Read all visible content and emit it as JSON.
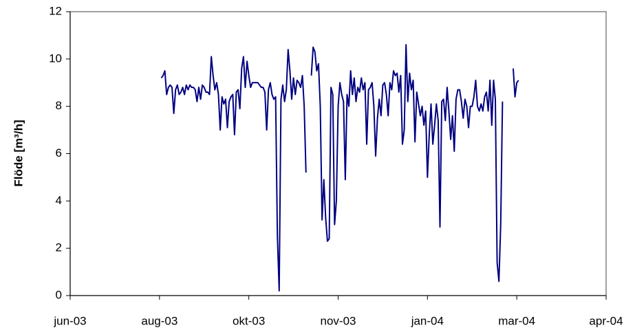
{
  "chart_data": {
    "type": "line",
    "ylabel": "Flöde [m³/h]",
    "xlim": [
      0,
      300
    ],
    "xticks": [
      {
        "value": 0,
        "label": "jun-03"
      },
      {
        "value": 50,
        "label": "aug-03"
      },
      {
        "value": 100,
        "label": "okt-03"
      },
      {
        "value": 150,
        "label": "nov-03"
      },
      {
        "value": 200,
        "label": "jan-04"
      },
      {
        "value": 250,
        "label": "mar-04"
      },
      {
        "value": 300,
        "label": "apr-04"
      }
    ],
    "ylim": [
      0,
      12
    ],
    "yticks": [
      0,
      2,
      4,
      6,
      8,
      10,
      12
    ],
    "grid": false,
    "x": [
      51,
      52,
      53,
      54,
      55,
      56,
      57,
      58,
      59,
      60,
      61,
      62,
      63,
      64,
      65,
      66,
      67,
      68,
      69,
      70,
      71,
      72,
      73,
      74,
      75,
      76,
      77,
      78,
      79,
      80,
      81,
      82,
      83,
      84,
      85,
      86,
      87,
      88,
      89,
      90,
      91,
      92,
      93,
      94,
      95,
      96,
      97,
      98,
      99,
      100,
      101,
      102,
      103,
      104,
      105,
      106,
      107,
      108,
      109,
      110,
      111,
      112,
      113,
      114,
      115,
      116,
      117,
      118,
      119,
      120,
      121,
      122,
      123,
      124,
      125,
      126,
      127,
      128,
      129,
      130,
      131,
      132,
      133,
      134,
      135,
      136,
      137,
      138,
      139,
      140,
      141,
      142,
      143,
      144,
      145,
      146,
      147,
      148,
      149,
      150,
      151,
      152,
      153,
      154,
      155,
      156,
      157,
      158,
      159,
      160,
      161,
      162,
      163,
      164,
      165,
      166,
      167,
      168,
      169,
      170,
      171,
      172,
      173,
      174,
      175,
      176,
      177,
      178,
      179,
      180,
      181,
      182,
      183,
      184,
      185,
      186,
      187,
      188,
      189,
      190,
      191,
      192,
      193,
      194,
      195,
      196,
      197,
      198,
      199,
      200,
      201,
      202,
      203,
      204,
      205,
      206,
      207,
      208,
      209,
      210,
      211,
      212,
      213,
      214,
      215,
      216,
      217,
      218,
      219,
      220,
      221,
      222,
      223,
      224,
      225,
      226,
      227,
      228,
      229,
      230,
      231,
      232,
      233,
      234,
      235,
      236,
      237,
      238,
      239,
      240,
      241,
      242,
      243,
      244,
      245,
      246,
      247,
      248,
      249,
      250,
      251
    ],
    "series": [
      {
        "color": "#000080",
        "values": [
          9.2,
          9.3,
          9.5,
          8.5,
          8.8,
          8.9,
          8.8,
          7.7,
          8.7,
          8.9,
          8.5,
          8.6,
          8.8,
          8.5,
          8.9,
          8.7,
          8.9,
          8.8,
          8.8,
          8.7,
          8.2,
          8.8,
          8.3,
          8.9,
          8.8,
          8.6,
          8.6,
          8.5,
          10.1,
          9.3,
          8.7,
          9.0,
          8.5,
          7.0,
          8.4,
          8.1,
          8.3,
          7.1,
          8.2,
          8.4,
          8.5,
          6.8,
          8.6,
          8.7,
          7.9,
          9.6,
          10.1,
          8.8,
          9.9,
          9.3,
          8.8,
          9.0,
          9.0,
          9.0,
          9.0,
          8.9,
          8.8,
          8.8,
          8.6,
          7.0,
          8.7,
          9.0,
          8.5,
          8.3,
          8.4,
          2.5,
          0.2,
          8.3,
          8.9,
          8.2,
          8.7,
          10.4,
          9.5,
          8.3,
          9.2,
          8.5,
          9.1,
          9.0,
          8.8,
          9.3,
          8.0,
          5.2,
          null,
          null,
          9.3,
          10.5,
          10.3,
          9.5,
          9.8,
          8.0,
          3.2,
          4.9,
          3.3,
          2.3,
          2.4,
          8.8,
          8.5,
          3.0,
          4.0,
          8.0,
          9.0,
          8.5,
          8.2,
          4.9,
          8.5,
          8.0,
          9.5,
          8.5,
          9.2,
          8.2,
          8.8,
          8.6,
          9.2,
          8.7,
          9.0,
          6.4,
          8.7,
          8.8,
          9.0,
          8.0,
          5.9,
          7.5,
          8.3,
          7.6,
          8.9,
          9.0,
          8.5,
          7.6,
          9.0,
          8.7,
          9.5,
          9.3,
          9.4,
          8.6,
          9.3,
          6.4,
          7.0,
          10.6,
          8.2,
          9.4,
          8.7,
          9.1,
          6.5,
          8.6,
          8.1,
          7.6,
          8.0,
          7.2,
          7.8,
          5.0,
          6.8,
          8.1,
          6.4,
          7.2,
          8.1,
          7.4,
          2.9,
          8.2,
          8.3,
          7.4,
          8.8,
          7.8,
          6.6,
          7.6,
          6.1,
          8.3,
          8.7,
          8.7,
          8.2,
          7.5,
          8.3,
          8.0,
          7.1,
          8.0,
          8.0,
          8.4,
          9.1,
          8.0,
          7.8,
          8.1,
          7.8,
          8.4,
          8.6,
          7.8,
          9.1,
          7.2,
          9.1,
          8.3,
          1.4,
          0.6,
          3.0,
          8.2,
          null,
          null,
          null,
          null,
          null,
          9.6,
          8.4,
          9.0,
          9.1
        ]
      }
    ]
  }
}
